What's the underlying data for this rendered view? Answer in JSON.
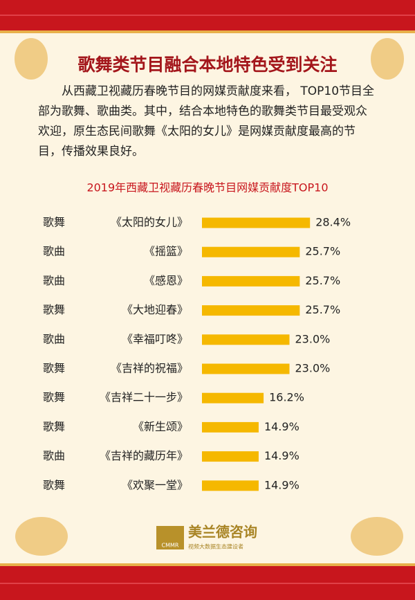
{
  "header": {
    "title": "歌舞类节目融合本地特色受到关注",
    "paragraph": "从西藏卫视藏历春晚节目的网媒贡献度来看， TOP10节目全部为歌舞、歌曲类。其中，结合本地特色的歌舞类节目最受观众欢迎，原生态民间歌舞《太阳的女儿》是网媒贡献度最高的节目，传播效果良好。"
  },
  "chart_data": {
    "type": "bar",
    "title": "2019年西藏卫视藏历春晚节目网媒贡献度TOP10",
    "genres": [
      "歌舞",
      "歌曲",
      "歌曲",
      "歌舞",
      "歌曲",
      "歌舞",
      "歌舞",
      "歌舞",
      "歌曲",
      "歌舞"
    ],
    "categories": [
      "《太阳的女儿》",
      "《摇篮》",
      "《感恩》",
      "《大地迎春》",
      "《幸福叮咚》",
      "《吉祥的祝福》",
      "《吉祥二十一步》",
      "《新生颂》",
      "《吉祥的藏历年》",
      "《欢聚一堂》"
    ],
    "values": [
      28.4,
      25.7,
      25.7,
      25.7,
      23.0,
      23.0,
      16.2,
      14.9,
      14.9,
      14.9
    ],
    "value_labels": [
      "28.4%",
      "25.7%",
      "25.7%",
      "25.7%",
      "23.0%",
      "23.0%",
      "16.2%",
      "14.9%",
      "14.9%",
      "14.9%"
    ],
    "color": "#f5b800"
  },
  "footer": {
    "brand": "美兰德咨询",
    "logo_letters": "CMMR",
    "slogan": "视频大数据生态建设者"
  }
}
